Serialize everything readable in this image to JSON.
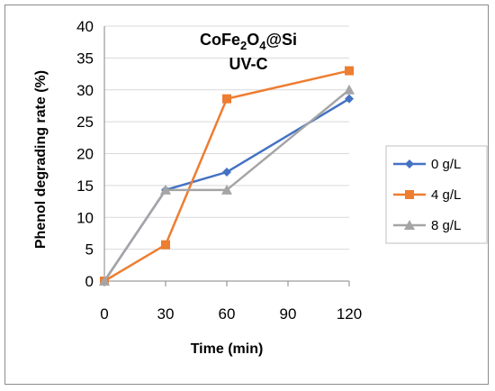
{
  "chart_data": {
    "type": "line",
    "title_main": "CoFe",
    "title_sub1": "2",
    "title_mid": "O",
    "title_sub2": "4",
    "title_end": "@Si",
    "subtitle": "UV-C",
    "xlabel": "Time (min)",
    "ylabel": "Phenol degrading rate (%)",
    "x_ticks": [
      "0",
      "30",
      "60",
      "90",
      "120"
    ],
    "y_ticks": [
      "0",
      "5",
      "10",
      "15",
      "20",
      "25",
      "30",
      "35",
      "40"
    ],
    "xlim": [
      0,
      120
    ],
    "ylim": [
      0,
      40
    ],
    "legend_position": "right",
    "series": [
      {
        "name": "0 g/L",
        "color": "#4472C4",
        "marker": "diamond",
        "x": [
          0,
          30,
          60,
          120
        ],
        "values": [
          0,
          14.3,
          17.1,
          28.6
        ]
      },
      {
        "name": "4 g/L",
        "color": "#ED7D31",
        "marker": "square",
        "x": [
          0,
          30,
          60,
          120
        ],
        "values": [
          0,
          5.7,
          28.6,
          33.0
        ]
      },
      {
        "name": "8 g/L",
        "color": "#A5A5A5",
        "marker": "triangle",
        "x": [
          0,
          30,
          60,
          120
        ],
        "values": [
          0,
          14.3,
          14.3,
          30.0
        ]
      }
    ]
  }
}
